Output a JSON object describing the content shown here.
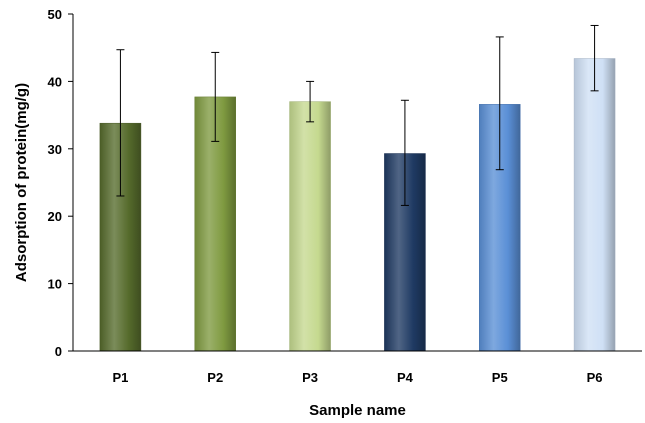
{
  "chart_data": {
    "type": "bar",
    "xlabel": "Sample name",
    "ylabel": "Adsorption of protein(mg/g)",
    "ylim": [
      0,
      50
    ],
    "yticks": [
      0,
      10,
      20,
      30,
      40,
      50
    ],
    "grid": false,
    "legend": "none",
    "categories": [
      "P1",
      "P2",
      "P3",
      "P4",
      "P5",
      "P6"
    ],
    "values": [
      33.8,
      37.7,
      37.0,
      29.3,
      36.6,
      43.4
    ],
    "error_low": [
      23.0,
      31.1,
      34.0,
      21.6,
      26.9,
      38.6
    ],
    "error_high": [
      44.7,
      44.3,
      40.0,
      37.2,
      46.6,
      48.3
    ],
    "colors": [
      "#566b2c",
      "#7f9a40",
      "#c5d98f",
      "#1f3a63",
      "#5a8fd6",
      "#cfe0f5"
    ]
  }
}
